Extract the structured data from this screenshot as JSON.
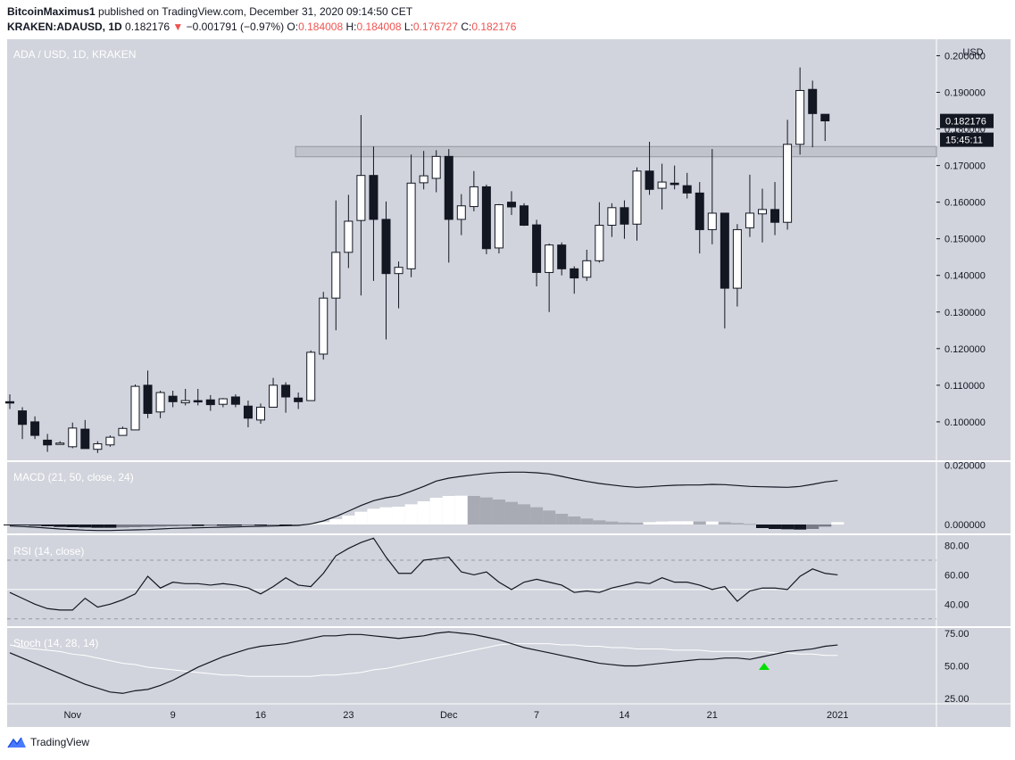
{
  "header": {
    "author": "BitcoinMaximus1",
    "published_text": "published on TradingView.com, December 31, 2020 09:14:50 CET",
    "symbol": "KRAKEN:ADAUSD, 1D",
    "last": "0.182176",
    "change_arrow": "▼",
    "change": "−0.001791 (−0.97%)",
    "o_label": "O:",
    "o": "0.184008",
    "h_label": "H:",
    "h": "0.184008",
    "l_label": "L:",
    "l": "0.176727",
    "c_label": "C:",
    "c": "0.182176"
  },
  "footer": {
    "brand": "TradingView",
    "logo_icon": "tradingview-logo-icon"
  },
  "colors": {
    "panel_bg": "#d1d4dc",
    "down": "#131722",
    "up": "#ffffff",
    "accent_red": "#ef5350",
    "signal_green": "#00e000"
  },
  "chart_data": {
    "type": "candlestick",
    "pair_label": "ADA / USD, 1D, KRAKEN",
    "currency": "USD",
    "price_axis_ticks": [
      "0.200000",
      "0.190000",
      "0.180000",
      "0.170000",
      "0.160000",
      "0.150000",
      "0.140000",
      "0.130000",
      "0.120000",
      "0.110000",
      "0.100000"
    ],
    "price_range": [
      0.0895,
      0.2045
    ],
    "current_price_label": "0.182176",
    "countdown_label": "15:45:11",
    "resistance_zone": [
      0.1724,
      0.1752
    ],
    "x_ticks": [
      {
        "label": "Nov",
        "idx": 5
      },
      {
        "label": "9",
        "idx": 13
      },
      {
        "label": "16",
        "idx": 20
      },
      {
        "label": "23",
        "idx": 27
      },
      {
        "label": "Dec",
        "idx": 35
      },
      {
        "label": "7",
        "idx": 42
      },
      {
        "label": "14",
        "idx": 49
      },
      {
        "label": "21",
        "idx": 56
      },
      {
        "label": "2021",
        "idx": 66
      }
    ],
    "candles": [
      {
        "o": 0.1055,
        "h": 0.1075,
        "l": 0.1035,
        "c": 0.1053
      },
      {
        "o": 0.103,
        "h": 0.104,
        "l": 0.0953,
        "c": 0.0993
      },
      {
        "o": 0.1,
        "h": 0.1015,
        "l": 0.0953,
        "c": 0.0963
      },
      {
        "o": 0.095,
        "h": 0.0967,
        "l": 0.0918,
        "c": 0.0937
      },
      {
        "o": 0.094,
        "h": 0.0947,
        "l": 0.0938,
        "c": 0.0942
      },
      {
        "o": 0.0932,
        "h": 0.0998,
        "l": 0.0928,
        "c": 0.0983
      },
      {
        "o": 0.098,
        "h": 0.1005,
        "l": 0.0928,
        "c": 0.0927
      },
      {
        "o": 0.0925,
        "h": 0.0947,
        "l": 0.0915,
        "c": 0.094
      },
      {
        "o": 0.0937,
        "h": 0.0963,
        "l": 0.0932,
        "c": 0.0958
      },
      {
        "o": 0.0963,
        "h": 0.0987,
        "l": 0.0962,
        "c": 0.0982
      },
      {
        "o": 0.0978,
        "h": 0.1102,
        "l": 0.0978,
        "c": 0.1097
      },
      {
        "o": 0.11,
        "h": 0.114,
        "l": 0.101,
        "c": 0.1023
      },
      {
        "o": 0.1027,
        "h": 0.1085,
        "l": 0.101,
        "c": 0.108
      },
      {
        "o": 0.107,
        "h": 0.1085,
        "l": 0.104,
        "c": 0.1055
      },
      {
        "o": 0.1052,
        "h": 0.109,
        "l": 0.1045,
        "c": 0.1058
      },
      {
        "o": 0.1058,
        "h": 0.109,
        "l": 0.1045,
        "c": 0.1055
      },
      {
        "o": 0.106,
        "h": 0.1073,
        "l": 0.103,
        "c": 0.1047
      },
      {
        "o": 0.1048,
        "h": 0.1065,
        "l": 0.104,
        "c": 0.1063
      },
      {
        "o": 0.1068,
        "h": 0.1075,
        "l": 0.104,
        "c": 0.1048
      },
      {
        "o": 0.1043,
        "h": 0.1058,
        "l": 0.0985,
        "c": 0.101
      },
      {
        "o": 0.1005,
        "h": 0.105,
        "l": 0.0995,
        "c": 0.104
      },
      {
        "o": 0.104,
        "h": 0.112,
        "l": 0.104,
        "c": 0.11
      },
      {
        "o": 0.11,
        "h": 0.1108,
        "l": 0.1025,
        "c": 0.1068
      },
      {
        "o": 0.1065,
        "h": 0.108,
        "l": 0.1035,
        "c": 0.1055
      },
      {
        "o": 0.1058,
        "h": 0.1195,
        "l": 0.1058,
        "c": 0.119
      },
      {
        "o": 0.1185,
        "h": 0.1355,
        "l": 0.117,
        "c": 0.1338
      },
      {
        "o": 0.1338,
        "h": 0.1605,
        "l": 0.125,
        "c": 0.1463
      },
      {
        "o": 0.1463,
        "h": 0.162,
        "l": 0.142,
        "c": 0.1548
      },
      {
        "o": 0.155,
        "h": 0.1838,
        "l": 0.1345,
        "c": 0.1673
      },
      {
        "o": 0.1673,
        "h": 0.1752,
        "l": 0.1385,
        "c": 0.1553
      },
      {
        "o": 0.1553,
        "h": 0.1602,
        "l": 0.1225,
        "c": 0.1405
      },
      {
        "o": 0.1405,
        "h": 0.1438,
        "l": 0.131,
        "c": 0.1422
      },
      {
        "o": 0.1418,
        "h": 0.173,
        "l": 0.1395,
        "c": 0.1652
      },
      {
        "o": 0.1653,
        "h": 0.174,
        "l": 0.1635,
        "c": 0.1672
      },
      {
        "o": 0.1665,
        "h": 0.1742,
        "l": 0.1627,
        "c": 0.1725
      },
      {
        "o": 0.1725,
        "h": 0.1745,
        "l": 0.1435,
        "c": 0.1553
      },
      {
        "o": 0.1553,
        "h": 0.1622,
        "l": 0.151,
        "c": 0.159
      },
      {
        "o": 0.1588,
        "h": 0.1685,
        "l": 0.1575,
        "c": 0.1642
      },
      {
        "o": 0.1642,
        "h": 0.1648,
        "l": 0.1458,
        "c": 0.1473
      },
      {
        "o": 0.1475,
        "h": 0.1595,
        "l": 0.146,
        "c": 0.1593
      },
      {
        "o": 0.16,
        "h": 0.163,
        "l": 0.1565,
        "c": 0.1587
      },
      {
        "o": 0.159,
        "h": 0.1597,
        "l": 0.1535,
        "c": 0.1537
      },
      {
        "o": 0.1538,
        "h": 0.1552,
        "l": 0.137,
        "c": 0.1408
      },
      {
        "o": 0.1408,
        "h": 0.1487,
        "l": 0.13,
        "c": 0.1483
      },
      {
        "o": 0.1483,
        "h": 0.149,
        "l": 0.14,
        "c": 0.1418
      },
      {
        "o": 0.1418,
        "h": 0.1425,
        "l": 0.135,
        "c": 0.1393
      },
      {
        "o": 0.1395,
        "h": 0.147,
        "l": 0.1385,
        "c": 0.144
      },
      {
        "o": 0.144,
        "h": 0.16,
        "l": 0.1435,
        "c": 0.1537
      },
      {
        "o": 0.1537,
        "h": 0.1597,
        "l": 0.1505,
        "c": 0.1585
      },
      {
        "o": 0.1585,
        "h": 0.1605,
        "l": 0.15,
        "c": 0.154
      },
      {
        "o": 0.154,
        "h": 0.1695,
        "l": 0.1495,
        "c": 0.1685
      },
      {
        "o": 0.1685,
        "h": 0.1765,
        "l": 0.162,
        "c": 0.1635
      },
      {
        "o": 0.1638,
        "h": 0.1705,
        "l": 0.158,
        "c": 0.1655
      },
      {
        "o": 0.1652,
        "h": 0.17,
        "l": 0.1635,
        "c": 0.1648
      },
      {
        "o": 0.1645,
        "h": 0.168,
        "l": 0.161,
        "c": 0.1625
      },
      {
        "o": 0.1625,
        "h": 0.1655,
        "l": 0.146,
        "c": 0.1525
      },
      {
        "o": 0.1525,
        "h": 0.1745,
        "l": 0.1485,
        "c": 0.157
      },
      {
        "o": 0.157,
        "h": 0.157,
        "l": 0.1255,
        "c": 0.1365
      },
      {
        "o": 0.1365,
        "h": 0.154,
        "l": 0.1315,
        "c": 0.1525
      },
      {
        "o": 0.153,
        "h": 0.1675,
        "l": 0.1505,
        "c": 0.157
      },
      {
        "o": 0.1568,
        "h": 0.1637,
        "l": 0.149,
        "c": 0.158
      },
      {
        "o": 0.158,
        "h": 0.1655,
        "l": 0.151,
        "c": 0.1545
      },
      {
        "o": 0.1545,
        "h": 0.1825,
        "l": 0.1525,
        "c": 0.1758
      },
      {
        "o": 0.1758,
        "h": 0.1968,
        "l": 0.173,
        "c": 0.1905
      },
      {
        "o": 0.1908,
        "h": 0.1932,
        "l": 0.175,
        "c": 0.1842
      },
      {
        "o": 0.184,
        "h": 0.184,
        "l": 0.1767,
        "c": 0.1822
      }
    ],
    "macd": {
      "label": "MACD (21, 50, close, 24)",
      "ticks": [
        "0.020000",
        "0.000000"
      ],
      "range": [
        -0.003,
        0.021
      ],
      "macd_line": [
        -0.0005,
        -0.0007,
        -0.0009,
        -0.0012,
        -0.0015,
        -0.0017,
        -0.0019,
        -0.002,
        -0.002,
        -0.0019,
        -0.0018,
        -0.0017,
        -0.0015,
        -0.0013,
        -0.0012,
        -0.0011,
        -0.001,
        -0.0009,
        -0.0008,
        -0.0007,
        -0.0006,
        -0.0005,
        -0.0004,
        -0.0003,
        0.0002,
        0.0012,
        0.0027,
        0.0045,
        0.0064,
        0.008,
        0.009,
        0.0097,
        0.0112,
        0.0128,
        0.0146,
        0.0156,
        0.0162,
        0.0167,
        0.0172,
        0.0175,
        0.0176,
        0.0176,
        0.0174,
        0.017,
        0.0162,
        0.0153,
        0.0145,
        0.0138,
        0.0133,
        0.0128,
        0.0125,
        0.0127,
        0.013,
        0.0132,
        0.0133,
        0.0133,
        0.0135,
        0.0134,
        0.0131,
        0.0128,
        0.0127,
        0.0126,
        0.0125,
        0.0128,
        0.0135,
        0.0143,
        0.0148
      ],
      "histogram": [
        -0.0002,
        -0.0003,
        -0.0004,
        -0.0006,
        -0.0008,
        -0.0009,
        -0.001,
        -0.0011,
        -0.0011,
        -0.001,
        -0.0009,
        -0.0008,
        -0.0007,
        -0.0006,
        -0.0005,
        -0.0005,
        -0.0004,
        -0.0004,
        -0.0004,
        -0.0003,
        -0.0003,
        -0.0002,
        -0.0002,
        -0.0001,
        0.0002,
        0.0008,
        0.0018,
        0.003,
        0.0043,
        0.0053,
        0.0058,
        0.006,
        0.0068,
        0.0078,
        0.009,
        0.0096,
        0.0097,
        0.0096,
        0.0091,
        0.0084,
        0.0076,
        0.0068,
        0.0058,
        0.0047,
        0.0036,
        0.0027,
        0.002,
        0.0014,
        0.001,
        0.0007,
        0.0006,
        0.0008,
        0.001,
        0.0011,
        0.0011,
        0.001,
        0.001,
        0.0008,
        0.0005,
        0.0002,
        -0.0012,
        -0.0015,
        -0.0016,
        -0.0017,
        -0.0015,
        -0.0007,
        0.0008
      ]
    },
    "rsi": {
      "label": "RSI (14, close)",
      "ticks": [
        "80.00",
        "60.00",
        "40.00"
      ],
      "range": [
        25,
        87
      ],
      "upper_band": 70,
      "lower_band": 30,
      "middle": 50,
      "values": [
        48,
        44,
        40,
        37,
        36,
        36,
        44,
        38,
        40,
        43,
        47,
        59,
        51,
        55,
        54,
        54,
        53,
        54,
        53,
        51,
        47,
        52,
        58,
        53,
        52,
        61,
        73,
        78,
        82,
        85,
        72,
        61,
        61,
        70,
        71,
        72,
        62,
        60,
        62,
        55,
        50,
        55,
        57,
        55,
        53,
        48,
        49,
        48,
        51,
        53,
        55,
        54,
        58,
        55,
        55,
        53,
        50,
        52,
        42,
        49,
        51,
        51,
        50,
        59,
        64,
        61,
        60
      ]
    },
    "stoch": {
      "label": "Stoch (14, 28, 14)",
      "ticks": [
        "75.00",
        "50.00",
        "25.00"
      ],
      "range": [
        21,
        79
      ],
      "k": [
        60,
        56,
        52,
        48,
        44,
        40,
        36,
        33,
        30,
        29,
        31,
        32,
        35,
        39,
        44,
        49,
        53,
        57,
        60,
        63,
        65,
        66,
        67,
        69,
        71,
        73,
        73,
        74,
        74,
        73,
        72,
        71,
        72,
        73,
        75,
        76,
        75,
        74,
        72,
        70,
        67,
        64,
        62,
        60,
        58,
        56,
        54,
        52,
        51,
        50,
        50,
        51,
        52,
        53,
        54,
        55,
        55,
        56,
        56,
        55,
        57,
        59,
        61,
        62,
        63,
        65,
        66
      ],
      "d": [
        66,
        64,
        63,
        62,
        61,
        59,
        58,
        56,
        54,
        52,
        51,
        49,
        48,
        47,
        46,
        45,
        44,
        43,
        43,
        42,
        42,
        42,
        42,
        42,
        42,
        43,
        43,
        44,
        45,
        47,
        48,
        50,
        52,
        54,
        56,
        58,
        60,
        62,
        64,
        66,
        67,
        67,
        67,
        67,
        66,
        66,
        65,
        65,
        64,
        64,
        63,
        63,
        63,
        62,
        62,
        62,
        61,
        61,
        61,
        61,
        61,
        60,
        60,
        59,
        59,
        58,
        58
      ]
    },
    "signal_marker": {
      "type": "up-triangle",
      "index": 60
    }
  }
}
